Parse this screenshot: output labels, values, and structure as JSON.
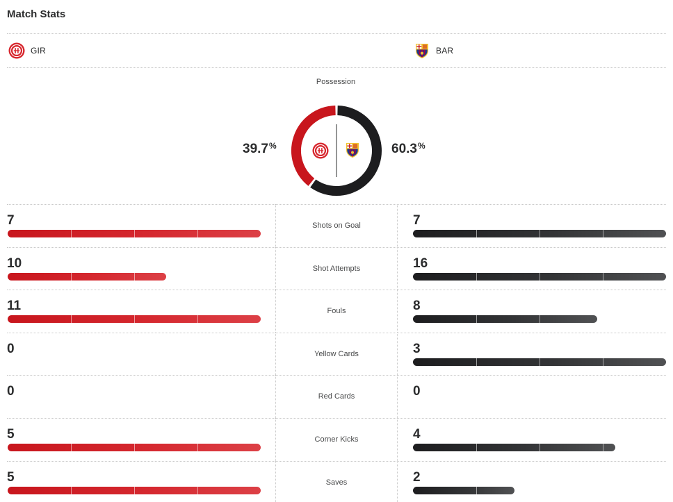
{
  "header": {
    "title": "Match Stats"
  },
  "teams": {
    "home": {
      "abbr": "GIR",
      "crest_icon": "girona-crest-icon",
      "color": "#c8161d"
    },
    "away": {
      "abbr": "BAR",
      "crest_icon": "barcelona-crest-icon",
      "color": "#1d1d1f"
    }
  },
  "possession": {
    "label": "Possession",
    "home_value": "39.7",
    "away_value": "60.3",
    "unit": "%",
    "home_fraction": 0.397,
    "away_fraction": 0.603
  },
  "stats": [
    {
      "label": "Shots on Goal",
      "home": "7",
      "away": "7",
      "home_fraction": 1.0,
      "away_fraction": 1.0
    },
    {
      "label": "Shot Attempts",
      "home": "10",
      "away": "16",
      "home_fraction": 0.625,
      "away_fraction": 1.0
    },
    {
      "label": "Fouls",
      "home": "11",
      "away": "8",
      "home_fraction": 1.0,
      "away_fraction": 0.727
    },
    {
      "label": "Yellow Cards",
      "home": "0",
      "away": "3",
      "home_fraction": 0.0,
      "away_fraction": 1.0
    },
    {
      "label": "Red Cards",
      "home": "0",
      "away": "0",
      "home_fraction": 0.0,
      "away_fraction": 0.0
    },
    {
      "label": "Corner Kicks",
      "home": "5",
      "away": "4",
      "home_fraction": 1.0,
      "away_fraction": 0.8
    },
    {
      "label": "Saves",
      "home": "5",
      "away": "2",
      "home_fraction": 1.0,
      "away_fraction": 0.4
    }
  ]
}
